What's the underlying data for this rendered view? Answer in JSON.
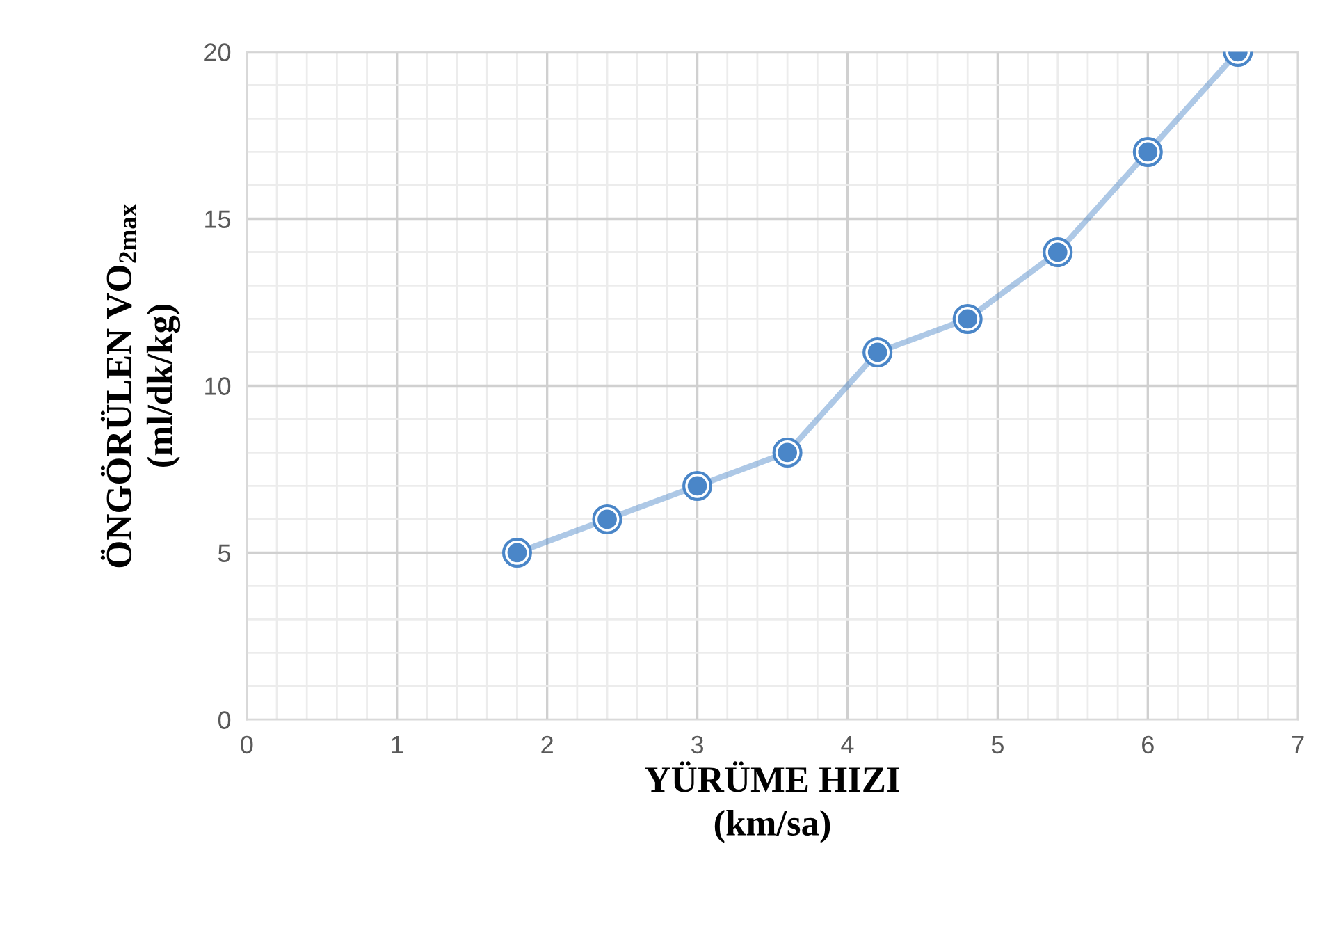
{
  "chart_data": {
    "type": "line",
    "xlabel": "YÜRÜME HIZI\n(km/sa)",
    "ylabel": "ÖNGÖRÜLEN VO$_{2max}$\n(ml/dk/kg)",
    "x": [
      1.8,
      2.4,
      3.0,
      3.6,
      4.2,
      4.8,
      5.4,
      6.0,
      6.6
    ],
    "series": [
      {
        "color": "#4a86c8",
        "values": [
          5,
          6,
          7,
          8,
          11,
          12,
          14,
          17,
          20
        ]
      }
    ],
    "xlim": [
      0,
      7
    ],
    "xticks": [
      0,
      1,
      2,
      3,
      4,
      5,
      6,
      7
    ],
    "ylim": [
      0,
      20
    ],
    "yticks": [
      0,
      5,
      10,
      15,
      20
    ],
    "grid": true,
    "marker": "circle",
    "line_style": "solid"
  }
}
